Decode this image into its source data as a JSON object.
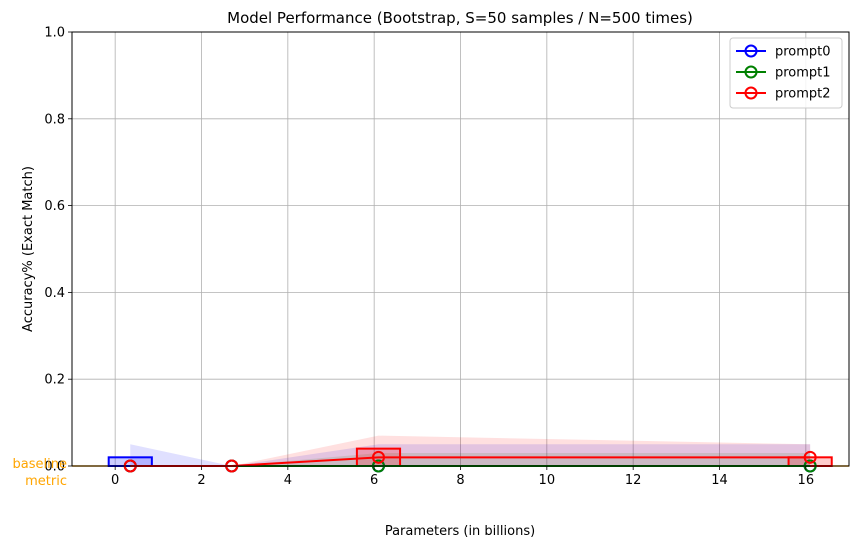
{
  "chart_data": {
    "type": "line",
    "title": "Model Performance (Bootstrap, S=50 samples / N=500 times)",
    "xlabel": "Parameters (in billions)",
    "ylabel": "Accuracy% (Exact Match)",
    "xlim": [
      -1,
      17
    ],
    "ylim": [
      0,
      1.0
    ],
    "xticks": [
      0,
      2,
      4,
      6,
      8,
      10,
      12,
      14,
      16
    ],
    "yticks": [
      0.0,
      0.2,
      0.4,
      0.6,
      0.8,
      1.0
    ],
    "xtick_labels": [
      "0",
      "2",
      "4",
      "6",
      "8",
      "10",
      "12",
      "14",
      "16"
    ],
    "ytick_labels": [
      "0.0",
      "0.2",
      "0.4",
      "0.6",
      "0.8",
      "1.0"
    ],
    "grid": true,
    "legend_position": "top-right",
    "baseline": {
      "label_line1": "baseline",
      "label_line2": "metric",
      "value": 0.0,
      "color": "#ffa500"
    },
    "series": [
      {
        "name": "prompt0",
        "color": "#0000ff",
        "x": [
          0.35,
          2.7,
          6.1,
          16.1
        ],
        "y": [
          0.0,
          0.0,
          0.0,
          0.0
        ],
        "band_low": [
          0.0,
          0.0,
          0.0,
          0.0
        ],
        "band_high": [
          0.05,
          0.0,
          0.05,
          0.05
        ],
        "bars": [
          {
            "x_start": -0.15,
            "x_end": 0.85,
            "value": 0.02
          }
        ]
      },
      {
        "name": "prompt1",
        "color": "#008000",
        "x": [
          0.35,
          2.7,
          6.1,
          16.1
        ],
        "y": [
          0.0,
          0.0,
          0.0,
          0.0
        ],
        "band_low": [
          0.0,
          0.0,
          0.0,
          0.0
        ],
        "band_high": [
          0.0,
          0.0,
          0.03,
          0.03
        ],
        "bars": []
      },
      {
        "name": "prompt2",
        "color": "#ff0000",
        "x": [
          0.35,
          2.7,
          6.1,
          16.1
        ],
        "y": [
          0.0,
          0.0,
          0.02,
          0.02
        ],
        "band_low": [
          0.0,
          0.0,
          0.0,
          0.0
        ],
        "band_high": [
          0.0,
          0.0,
          0.07,
          0.05
        ],
        "bars": [
          {
            "x_start": 5.6,
            "x_end": 6.6,
            "value": 0.04
          },
          {
            "x_start": 15.6,
            "x_end": 16.6,
            "value": 0.02
          }
        ]
      }
    ]
  }
}
